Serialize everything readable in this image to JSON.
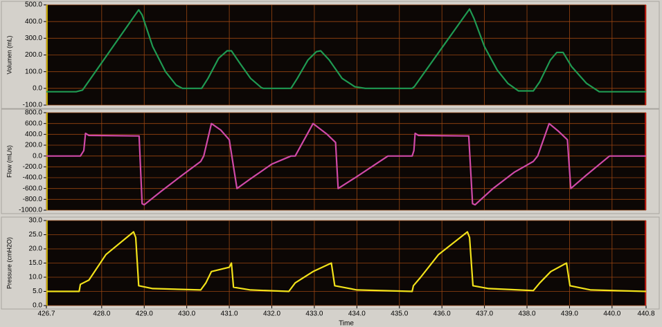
{
  "chart_data": [
    {
      "type": "line",
      "y_label": "Volumen (mL)",
      "xlim": [
        426.7,
        440.8
      ],
      "ylim": [
        -100,
        500
      ],
      "yticks": [
        {
          "value": 500,
          "label": "500.0"
        },
        {
          "value": 400,
          "label": "400.0"
        },
        {
          "value": 300,
          "label": "300.0"
        },
        {
          "value": 200,
          "label": "200.0"
        },
        {
          "value": 100,
          "label": "100.0"
        },
        {
          "value": 0,
          "label": "0.0"
        },
        {
          "value": -100,
          "label": "-100.0"
        }
      ],
      "grid": true,
      "x": [
        426.7,
        427.4,
        427.55,
        428.87,
        428.95,
        429.2,
        429.5,
        429.75,
        429.9,
        430.35,
        430.5,
        430.75,
        430.95,
        431.05,
        431.25,
        431.5,
        431.75,
        431.8,
        432.45,
        432.6,
        432.85,
        433.05,
        433.15,
        433.35,
        433.65,
        433.95,
        434.2,
        435.3,
        435.35,
        436.65,
        436.75,
        437.0,
        437.3,
        437.55,
        437.8,
        438.15,
        438.3,
        438.55,
        438.7,
        438.85,
        439.05,
        439.4,
        439.7,
        440.8
      ],
      "series": [
        {
          "color": "#1f9a52",
          "values": [
            -20,
            -20,
            -10,
            470,
            440,
            250,
            100,
            20,
            0,
            0,
            60,
            180,
            225,
            225,
            150,
            60,
            5,
            0,
            0,
            60,
            170,
            220,
            225,
            170,
            60,
            10,
            0,
            0,
            10,
            475,
            420,
            250,
            110,
            30,
            -15,
            -15,
            40,
            170,
            215,
            215,
            130,
            30,
            -20,
            -20
          ]
        }
      ]
    },
    {
      "type": "line",
      "y_label": "Flow (mL/s)",
      "xlim": [
        426.7,
        440.8
      ],
      "ylim": [
        -1000,
        800
      ],
      "yticks": [
        {
          "value": 800,
          "label": "800.0"
        },
        {
          "value": 600,
          "label": "600.0"
        },
        {
          "value": 400,
          "label": "400.0"
        },
        {
          "value": 200,
          "label": "200.0"
        },
        {
          "value": 0,
          "label": "0.0"
        },
        {
          "value": -200,
          "label": "-200.0"
        },
        {
          "value": -400,
          "label": "-400.0"
        },
        {
          "value": -600,
          "label": "-600.0"
        },
        {
          "value": -800,
          "label": "-800.0"
        },
        {
          "value": -1000,
          "label": "-1000.0"
        }
      ],
      "grid": true,
      "x": [
        426.7,
        427.5,
        427.58,
        427.62,
        427.7,
        428.88,
        428.95,
        429.0,
        429.4,
        429.9,
        430.33,
        430.4,
        430.58,
        430.8,
        431.0,
        431.18,
        431.5,
        432.0,
        432.45,
        432.55,
        432.97,
        433.3,
        433.5,
        433.56,
        434.0,
        434.73,
        435.3,
        435.34,
        435.37,
        435.45,
        436.63,
        436.72,
        436.78,
        437.2,
        437.7,
        438.15,
        438.25,
        438.52,
        438.75,
        438.95,
        439.03,
        439.4,
        439.94,
        440.8
      ],
      "series": [
        {
          "color": "#d04aa8",
          "values": [
            0,
            0,
            100,
            420,
            380,
            370,
            -880,
            -900,
            -650,
            -350,
            -100,
            0,
            600,
            480,
            300,
            -600,
            -420,
            -150,
            0,
            0,
            600,
            400,
            250,
            -600,
            -380,
            0,
            0,
            100,
            420,
            380,
            370,
            -880,
            -900,
            -600,
            -300,
            -100,
            0,
            600,
            450,
            300,
            -600,
            -350,
            0,
            0
          ]
        }
      ]
    },
    {
      "type": "line",
      "y_label": "Pressure (cmH2O)",
      "x_label": "Time",
      "xlim": [
        426.7,
        440.8
      ],
      "ylim": [
        0,
        30
      ],
      "yticks": [
        {
          "value": 30,
          "label": "30.0"
        },
        {
          "value": 25,
          "label": "25.0"
        },
        {
          "value": 20,
          "label": "20.0"
        },
        {
          "value": 15,
          "label": "15.0"
        },
        {
          "value": 10,
          "label": "10.0"
        },
        {
          "value": 5,
          "label": "5.0"
        },
        {
          "value": 0,
          "label": "0.0"
        }
      ],
      "xticks": [
        426.7,
        {
          "value": 428,
          "label": "428.0"
        },
        {
          "value": 429,
          "label": "429.0"
        },
        {
          "value": 430,
          "label": "430.0"
        },
        {
          "value": 431,
          "label": "431.0"
        },
        {
          "value": 432,
          "label": "432.0"
        },
        {
          "value": 433,
          "label": "433.0"
        },
        {
          "value": 434,
          "label": "434.0"
        },
        {
          "value": 435,
          "label": "435.0"
        },
        {
          "value": 436,
          "label": "436.0"
        },
        {
          "value": 437,
          "label": "437.0"
        },
        {
          "value": 438,
          "label": "438.0"
        },
        {
          "value": 439,
          "label": "439.0"
        },
        {
          "value": 440,
          "label": "440.0"
        },
        440.8
      ],
      "grid": true,
      "x": [
        426.7,
        427.47,
        427.5,
        427.7,
        428.1,
        428.75,
        428.8,
        428.87,
        429.2,
        430.33,
        430.45,
        430.58,
        431.0,
        431.05,
        431.1,
        431.5,
        432.4,
        432.55,
        432.97,
        433.4,
        433.48,
        434.0,
        435.3,
        435.33,
        435.5,
        435.92,
        436.6,
        436.65,
        436.73,
        437.1,
        438.15,
        438.3,
        438.56,
        438.93,
        439.01,
        439.5,
        440.8
      ],
      "series": [
        {
          "color": "#f2e21a",
          "values": [
            5,
            5,
            7.5,
            9,
            18,
            26,
            24,
            7,
            6,
            5.5,
            8,
            12,
            13.5,
            15,
            6.5,
            5.5,
            5,
            8,
            12,
            15,
            7,
            5.5,
            5,
            7,
            10,
            18,
            26,
            24,
            7,
            6,
            5.3,
            8,
            12,
            15,
            7,
            5.5,
            5
          ]
        }
      ]
    }
  ]
}
